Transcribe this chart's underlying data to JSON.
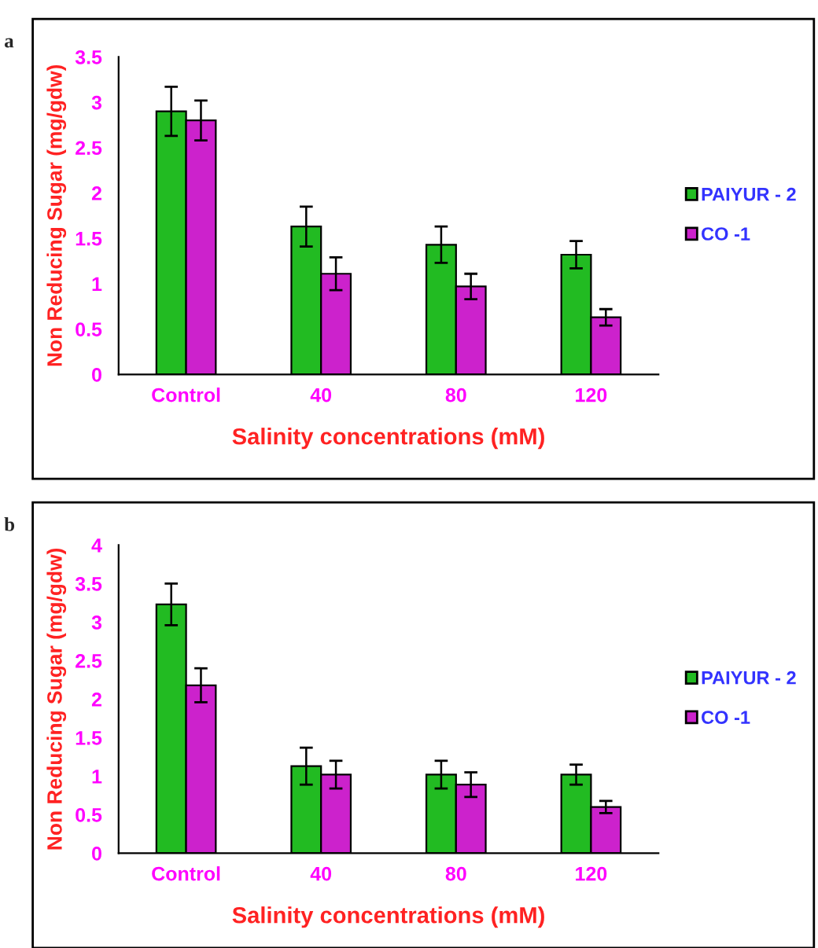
{
  "chart_data": [
    {
      "type": "bar",
      "annotations": [
        "a"
      ],
      "xlabel": "Salinity concentrations (mM)",
      "ylabel": "Non Reducing Sugar (mg/gdw)",
      "categories": [
        "Control",
        "40",
        "80",
        "120"
      ],
      "ylim": [
        0,
        3.5
      ],
      "yticks": [
        0,
        {
          "value": 0.5,
          "label": "0.5"
        },
        1,
        {
          "value": 1.5,
          "label": "1.5"
        },
        2,
        {
          "value": 2.5,
          "label": "2.5"
        },
        3,
        {
          "value": 3.5,
          "label": "3.5"
        }
      ],
      "grid": false,
      "legend": "right",
      "series": [
        {
          "name": "PAIYUR - 2",
          "color": "#22bb22",
          "values": [
            2.9,
            1.63,
            1.43,
            1.32
          ],
          "errors": [
            0.27,
            0.22,
            0.2,
            0.15
          ]
        },
        {
          "name": "CO -1",
          "color": "#cc22cc",
          "values": [
            2.8,
            1.11,
            0.97,
            0.63
          ],
          "errors": [
            0.22,
            0.18,
            0.14,
            0.09
          ]
        }
      ]
    },
    {
      "type": "bar",
      "annotations": [
        "b"
      ],
      "xlabel": "Salinity concentrations (mM)",
      "ylabel": "Non Reducing Sugar (mg/gdw)",
      "categories": [
        "Control",
        "40",
        "80",
        "120"
      ],
      "ylim": [
        0,
        4
      ],
      "yticks": [
        0,
        {
          "value": 0.5,
          "label": "0.5"
        },
        1,
        {
          "value": 1.5,
          "label": "1.5"
        },
        2,
        {
          "value": 2.5,
          "label": "2.5"
        },
        3,
        {
          "value": 3.5,
          "label": "3.5"
        },
        4
      ],
      "grid": false,
      "legend": "right",
      "series": [
        {
          "name": "PAIYUR - 2",
          "color": "#22bb22",
          "values": [
            3.23,
            1.13,
            1.02,
            1.02
          ],
          "errors": [
            0.27,
            0.24,
            0.18,
            0.13
          ]
        },
        {
          "name": "CO -1",
          "color": "#cc22cc",
          "values": [
            2.18,
            1.02,
            0.89,
            0.6
          ],
          "errors": [
            0.22,
            0.18,
            0.16,
            0.08
          ]
        }
      ]
    }
  ]
}
